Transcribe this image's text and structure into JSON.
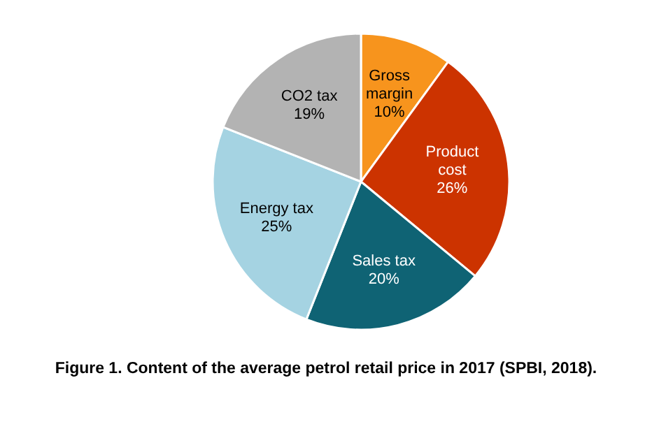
{
  "chart_data": {
    "type": "pie",
    "categories": [
      "Gross margin",
      "Product cost",
      "Sales tax",
      "Energy tax",
      "CO2 tax"
    ],
    "values": [
      10,
      26,
      20,
      25,
      19
    ],
    "colors": [
      "#f7941d",
      "#cc3300",
      "#0f6374",
      "#a5d3e2",
      "#b3b3b3"
    ],
    "value_labels": [
      "10%",
      "26%",
      "20%",
      "25%",
      "19%"
    ],
    "annotations": [
      "Figure 1. Content of the average petrol retail price in 2017 (SPBI, 2018)."
    ]
  }
}
